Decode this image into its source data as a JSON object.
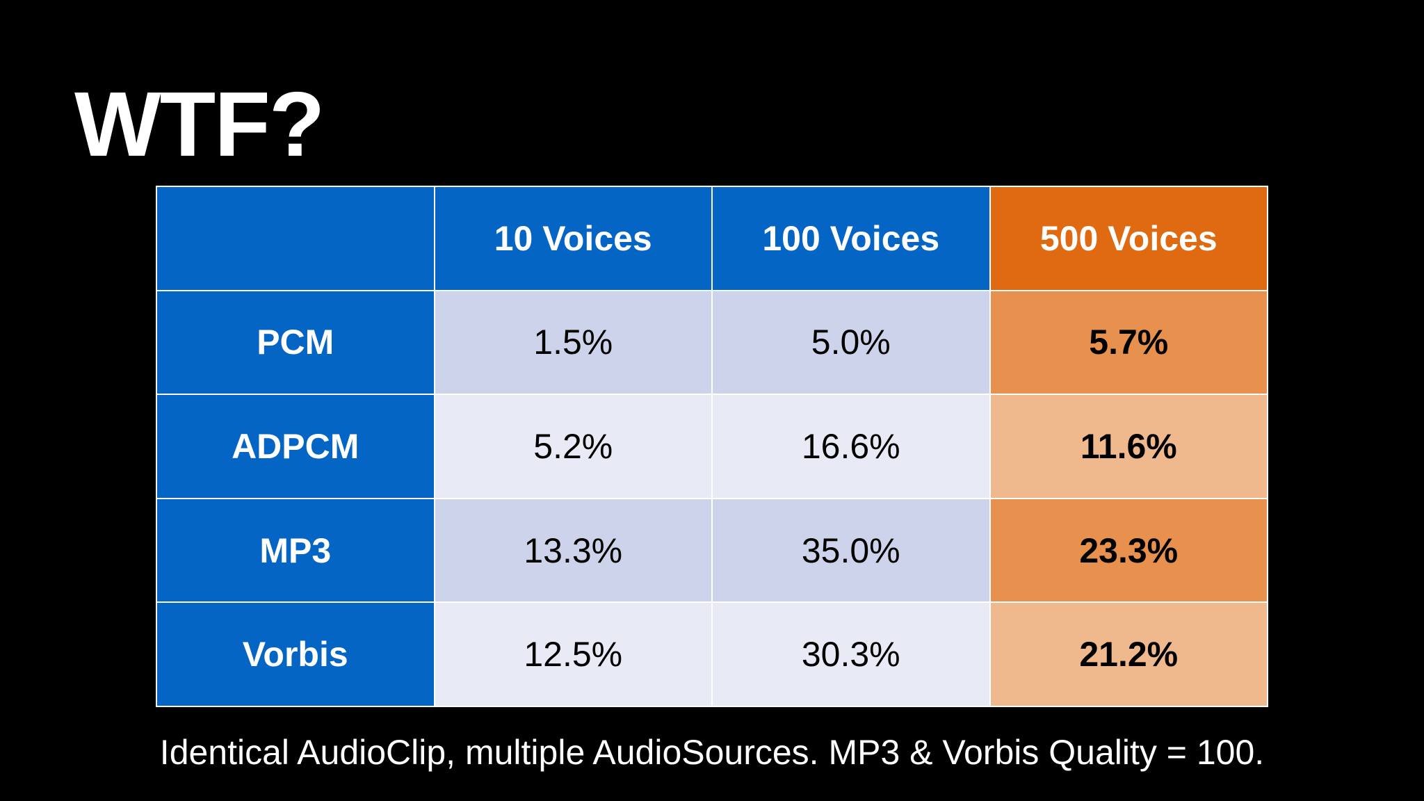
{
  "title": "WTF?",
  "table": {
    "corner": "",
    "columns": [
      "10 Voices",
      "100 Voices",
      "500 Voices"
    ],
    "rows": [
      {
        "label": "PCM",
        "values": [
          "1.5%",
          "5.0%",
          "5.7%"
        ]
      },
      {
        "label": "ADPCM",
        "values": [
          "5.2%",
          "16.6%",
          "11.6%"
        ]
      },
      {
        "label": "MP3",
        "values": [
          "13.3%",
          "35.0%",
          "23.3%"
        ]
      },
      {
        "label": "Vorbis",
        "values": [
          "12.5%",
          "30.3%",
          "21.2%"
        ]
      }
    ],
    "highlight_color": "#e06a12",
    "header_color": "#0565c4"
  },
  "caption": "Identical AudioClip, multiple AudioSources. MP3 & Vorbis Quality = 100."
}
